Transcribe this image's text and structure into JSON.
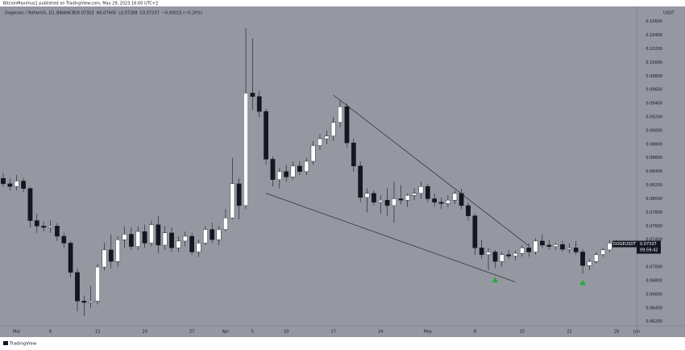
{
  "header": {
    "published": "BitcoinMaximus1 published on TradingView.com, May 29, 2023 16:00 UTC+2"
  },
  "legend": {
    "symbol": "Dogecoin / TetherUS, 1D, BINANCE",
    "ohlc": [
      "O0.07353",
      "H0.07400",
      "L0.07288",
      "C0.07337",
      "−0.00015 (−0.20%)"
    ]
  },
  "footer": {
    "brand": "TradingView"
  },
  "chart_data": {
    "type": "candlestick",
    "currency": "USDT",
    "symbol": "DOGEUSDT",
    "last_price": 0.07337,
    "countdown": "09:59:42",
    "up_color": "#ffffff",
    "down_color": "#131722",
    "grid": false,
    "x": [
      "2023-02-27",
      "2023-02-28",
      "2023-03-01",
      "2023-03-02",
      "2023-03-03",
      "2023-03-04",
      "2023-03-05",
      "2023-03-06",
      "2023-03-07",
      "2023-03-08",
      "2023-03-09",
      "2023-03-10",
      "2023-03-11",
      "2023-03-12",
      "2023-03-13",
      "2023-03-14",
      "2023-03-15",
      "2023-03-16",
      "2023-03-17",
      "2023-03-18",
      "2023-03-19",
      "2023-03-20",
      "2023-03-21",
      "2023-03-22",
      "2023-03-23",
      "2023-03-24",
      "2023-03-25",
      "2023-03-26",
      "2023-03-27",
      "2023-03-28",
      "2023-03-29",
      "2023-03-30",
      "2023-03-31",
      "2023-04-01",
      "2023-04-02",
      "2023-04-03",
      "2023-04-04",
      "2023-04-05",
      "2023-04-06",
      "2023-04-07",
      "2023-04-08",
      "2023-04-09",
      "2023-04-10",
      "2023-04-11",
      "2023-04-12",
      "2023-04-13",
      "2023-04-14",
      "2023-04-15",
      "2023-04-16",
      "2023-04-17",
      "2023-04-18",
      "2023-04-19",
      "2023-04-20",
      "2023-04-21",
      "2023-04-22",
      "2023-04-23",
      "2023-04-24",
      "2023-04-25",
      "2023-04-26",
      "2023-04-27",
      "2023-04-28",
      "2023-04-29",
      "2023-04-30",
      "2023-05-01",
      "2023-05-02",
      "2023-05-03",
      "2023-05-04",
      "2023-05-05",
      "2023-05-06",
      "2023-05-07",
      "2023-05-08",
      "2023-05-09",
      "2023-05-10",
      "2023-05-11",
      "2023-05-12",
      "2023-05-13",
      "2023-05-14",
      "2023-05-15",
      "2023-05-16",
      "2023-05-17",
      "2023-05-18",
      "2023-05-19",
      "2023-05-20",
      "2023-05-21",
      "2023-05-22",
      "2023-05-23",
      "2023-05-24",
      "2023-05-25",
      "2023-05-26",
      "2023-05-27",
      "2023-05-28",
      "2023-05-29"
    ],
    "open": [
      0.083,
      0.0822,
      0.0818,
      0.0826,
      0.0815,
      0.0768,
      0.076,
      0.0758,
      0.076,
      0.0745,
      0.0735,
      0.0692,
      0.065,
      0.0648,
      0.065,
      0.07,
      0.0725,
      0.0708,
      0.074,
      0.0748,
      0.073,
      0.0752,
      0.0735,
      0.0762,
      0.0732,
      0.075,
      0.0728,
      0.0738,
      0.0745,
      0.0722,
      0.0735,
      0.0755,
      0.074,
      0.0755,
      0.0772,
      0.0822,
      0.079,
      0.0955,
      0.095,
      0.0928,
      0.0858,
      0.0828,
      0.084,
      0.0832,
      0.0848,
      0.084,
      0.0855,
      0.0878,
      0.0888,
      0.0892,
      0.0912,
      0.0935,
      0.0882,
      0.0848,
      0.0802,
      0.0808,
      0.0795,
      0.0798,
      0.079,
      0.08,
      0.0798,
      0.0805,
      0.0808,
      0.0818,
      0.08,
      0.0795,
      0.0793,
      0.0798,
      0.0808,
      0.079,
      0.0775,
      0.0728,
      0.0718,
      0.0722,
      0.0708,
      0.0718,
      0.0716,
      0.072,
      0.0728,
      0.0722,
      0.0738,
      0.0732,
      0.073,
      0.0733,
      0.0726,
      0.0728,
      0.0722,
      0.0702,
      0.0708,
      0.0718,
      0.0725,
      0.07353
    ],
    "high": [
      0.0838,
      0.083,
      0.0835,
      0.083,
      0.0818,
      0.0778,
      0.0766,
      0.0768,
      0.0764,
      0.075,
      0.0738,
      0.0698,
      0.0658,
      0.0672,
      0.0705,
      0.0735,
      0.0748,
      0.0745,
      0.076,
      0.0758,
      0.076,
      0.0762,
      0.0768,
      0.0775,
      0.076,
      0.0758,
      0.0745,
      0.0752,
      0.075,
      0.074,
      0.076,
      0.0765,
      0.076,
      0.0785,
      0.086,
      0.083,
      0.105,
      0.1035,
      0.0958,
      0.0932,
      0.0862,
      0.0845,
      0.085,
      0.0855,
      0.0855,
      0.086,
      0.0885,
      0.0895,
      0.09,
      0.092,
      0.0945,
      0.094,
      0.0888,
      0.0855,
      0.0815,
      0.0812,
      0.0805,
      0.0815,
      0.0825,
      0.082,
      0.0808,
      0.0815,
      0.0825,
      0.0822,
      0.0808,
      0.0802,
      0.0805,
      0.0812,
      0.0815,
      0.0795,
      0.0778,
      0.074,
      0.0728,
      0.0725,
      0.0722,
      0.0725,
      0.0724,
      0.0732,
      0.0735,
      0.0742,
      0.0748,
      0.074,
      0.0735,
      0.0738,
      0.0735,
      0.0738,
      0.0726,
      0.0712,
      0.0722,
      0.0728,
      0.074,
      0.074
    ],
    "low": [
      0.0818,
      0.0812,
      0.0812,
      0.081,
      0.0758,
      0.075,
      0.0752,
      0.075,
      0.0738,
      0.0728,
      0.0685,
      0.0635,
      0.0628,
      0.064,
      0.0645,
      0.0695,
      0.0698,
      0.07,
      0.0728,
      0.0725,
      0.0725,
      0.0728,
      0.073,
      0.072,
      0.0725,
      0.0722,
      0.0722,
      0.073,
      0.0718,
      0.0715,
      0.0732,
      0.0735,
      0.0732,
      0.0752,
      0.077,
      0.077,
      0.0785,
      0.093,
      0.092,
      0.085,
      0.0818,
      0.0815,
      0.0825,
      0.0828,
      0.0835,
      0.0835,
      0.085,
      0.0872,
      0.088,
      0.0885,
      0.0905,
      0.0875,
      0.084,
      0.0795,
      0.078,
      0.079,
      0.0778,
      0.0775,
      0.0765,
      0.0792,
      0.0788,
      0.0798,
      0.08,
      0.0795,
      0.0788,
      0.0785,
      0.0788,
      0.0792,
      0.0785,
      0.0768,
      0.0718,
      0.0712,
      0.0695,
      0.0698,
      0.07,
      0.0712,
      0.071,
      0.0715,
      0.0715,
      0.0718,
      0.0728,
      0.0725,
      0.0725,
      0.0722,
      0.072,
      0.0718,
      0.069,
      0.0695,
      0.0705,
      0.0715,
      0.0722,
      0.07288
    ],
    "close": [
      0.0822,
      0.0818,
      0.0826,
      0.0815,
      0.0768,
      0.076,
      0.0758,
      0.076,
      0.0745,
      0.0735,
      0.0692,
      0.065,
      0.0648,
      0.065,
      0.07,
      0.0725,
      0.0708,
      0.074,
      0.0748,
      0.073,
      0.0752,
      0.0735,
      0.0762,
      0.0732,
      0.075,
      0.0728,
      0.0738,
      0.0745,
      0.0722,
      0.0735,
      0.0755,
      0.074,
      0.0755,
      0.0772,
      0.0822,
      0.079,
      0.0955,
      0.095,
      0.0928,
      0.0858,
      0.0828,
      0.084,
      0.0832,
      0.0848,
      0.084,
      0.0855,
      0.0878,
      0.0888,
      0.0892,
      0.0912,
      0.0935,
      0.0882,
      0.0848,
      0.0802,
      0.0808,
      0.0795,
      0.0798,
      0.079,
      0.08,
      0.0798,
      0.0805,
      0.0808,
      0.0818,
      0.08,
      0.0795,
      0.0793,
      0.0798,
      0.0808,
      0.079,
      0.0775,
      0.0728,
      0.0718,
      0.0722,
      0.0708,
      0.0718,
      0.0716,
      0.072,
      0.0728,
      0.0722,
      0.0738,
      0.0732,
      0.073,
      0.0733,
      0.0726,
      0.0728,
      0.0722,
      0.0702,
      0.0708,
      0.0718,
      0.0725,
      0.0735,
      0.07337
    ],
    "xlim": [
      "2023-02-27",
      "2023-06-01"
    ],
    "xticks": [
      {
        "value": "2023-03-01",
        "label": "Mar"
      },
      {
        "value": "2023-03-06",
        "label": "6"
      },
      {
        "value": "2023-03-13",
        "label": "13"
      },
      {
        "value": "2023-03-20",
        "label": "20"
      },
      {
        "value": "2023-03-27",
        "label": "27"
      },
      {
        "value": "2023-04-01",
        "label": "Apr"
      },
      {
        "value": "2023-04-05",
        "label": "5"
      },
      {
        "value": "2023-04-10",
        "label": "10"
      },
      {
        "value": "2023-04-17",
        "label": "17"
      },
      {
        "value": "2023-04-24",
        "label": "24"
      },
      {
        "value": "2023-05-01",
        "label": "May"
      },
      {
        "value": "2023-05-08",
        "label": "8"
      },
      {
        "value": "2023-05-15",
        "label": "15"
      },
      {
        "value": "2023-05-22",
        "label": "22"
      },
      {
        "value": "2023-05-29",
        "label": "29"
      },
      {
        "value": "2023-06-01",
        "label": "Jun"
      }
    ],
    "ylim": [
      0.0609,
      0.1082
    ],
    "yticks": [
      {
        "value": 0.062,
        "label": "0.06200"
      },
      {
        "value": 0.064,
        "label": "0.06400"
      },
      {
        "value": 0.066,
        "label": "0.06600"
      },
      {
        "value": 0.068,
        "label": "0.06800"
      },
      {
        "value": 0.07,
        "label": "0.07000"
      },
      {
        "value": 0.074,
        "label": "0.07400"
      },
      {
        "value": 0.076,
        "label": "0.07600"
      },
      {
        "value": 0.078,
        "label": "0.07800"
      },
      {
        "value": 0.08,
        "label": "0.08000"
      },
      {
        "value": 0.082,
        "label": "0.08200"
      },
      {
        "value": 0.084,
        "label": "0.08400"
      },
      {
        "value": 0.086,
        "label": "0.08600"
      },
      {
        "value": 0.088,
        "label": "0.08800"
      },
      {
        "value": 0.09,
        "label": "0.09000"
      },
      {
        "value": 0.092,
        "label": "0.09200"
      },
      {
        "value": 0.094,
        "label": "0.09400"
      },
      {
        "value": 0.096,
        "label": "0.09600"
      },
      {
        "value": 0.098,
        "label": "0.09800"
      },
      {
        "value": 0.1,
        "label": "0.10000"
      },
      {
        "value": 0.102,
        "label": "0.10200"
      },
      {
        "value": 0.104,
        "label": "0.10400"
      },
      {
        "value": 0.106,
        "label": "0.10600"
      }
    ],
    "trendlines": [
      {
        "x": [
          "2023-04-17",
          "2023-05-16"
        ],
        "y": [
          0.0952,
          0.0731
        ]
      },
      {
        "x": [
          "2023-04-07",
          "2023-05-14"
        ],
        "y": [
          0.0808,
          0.0678
        ]
      }
    ],
    "trendline_color": "#131722",
    "markers": [
      {
        "x": "2023-05-11",
        "y": 0.0681
      },
      {
        "x": "2023-05-24",
        "y": 0.0677
      }
    ],
    "marker_color": "#22ab46"
  }
}
